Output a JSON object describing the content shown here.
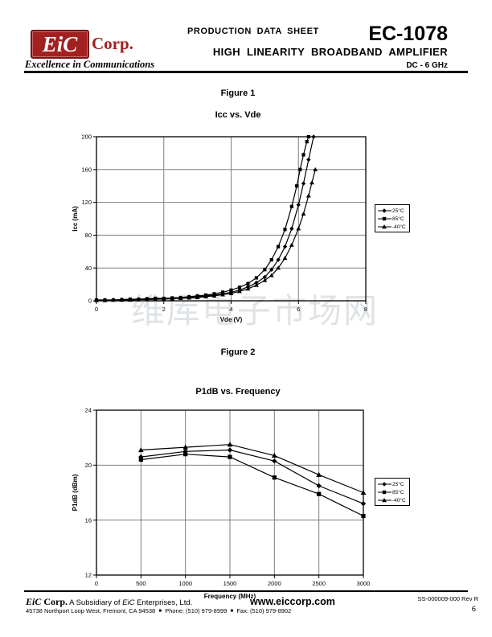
{
  "page": {
    "header": {
      "logo_text": "EiC",
      "logo_corp": "Corp.",
      "tagline": "Excellence in Communications",
      "doc_type": "PRODUCTION DATA SHEET",
      "part_number": "EC-1078",
      "subtitle": "HIGH LINEARITY BROADBAND AMPLIFIER",
      "band": "DC - 6 GHz",
      "brand_red": "#a32020"
    },
    "watermark": "维库电子市场网",
    "footer": {
      "brand_eic": "EiC",
      "brand_corp": " Corp.",
      "subsidiary_pre": " A Subsidiary of ",
      "subsidiary_eic": "EiC",
      "subsidiary_post": " Enterprises, Ltd.",
      "website": "www.eiccorp.com",
      "doc_ref": "SS-000009-000 Rev R",
      "address": "45738 Northport Loop West, Fremont, CA 94538",
      "phone": "Phone: (510) 979-8999",
      "fax": "Fax: (510) 979-8902",
      "bullet": "■",
      "page_number": "6"
    }
  },
  "chart_data": [
    {
      "id": "figure1",
      "figure_label": "Figure 1",
      "title": "Icc vs. Vde",
      "type": "line",
      "xlabel": "Vde (V)",
      "ylabel": "Icc (mA)",
      "xlim": [
        0,
        8
      ],
      "ylim": [
        0,
        200
      ],
      "xticks": [
        0,
        2,
        4,
        6,
        8
      ],
      "yticks": [
        0,
        40,
        80,
        120,
        160,
        200
      ],
      "grid": true,
      "legend_position": "right",
      "series": [
        {
          "name": "25°C",
          "marker": "diamond",
          "color": "#000000",
          "points": [
            [
              0,
              1
            ],
            [
              0.25,
              1
            ],
            [
              0.5,
              1
            ],
            [
              0.75,
              1
            ],
            [
              1,
              1.5
            ],
            [
              1.25,
              1.5
            ],
            [
              1.5,
              2
            ],
            [
              1.75,
              2
            ],
            [
              2,
              2.5
            ],
            [
              2.25,
              3
            ],
            [
              2.5,
              3.5
            ],
            [
              2.75,
              4
            ],
            [
              3,
              5
            ],
            [
              3.25,
              6
            ],
            [
              3.5,
              7
            ],
            [
              3.75,
              8.5
            ],
            [
              4,
              10.5
            ],
            [
              4.25,
              13
            ],
            [
              4.5,
              17
            ],
            [
              4.75,
              22
            ],
            [
              5,
              29
            ],
            [
              5.2,
              38
            ],
            [
              5.4,
              50
            ],
            [
              5.6,
              66
            ],
            [
              5.8,
              88
            ],
            [
              6,
              117
            ],
            [
              6.15,
              143
            ],
            [
              6.3,
              172
            ],
            [
              6.45,
              200
            ]
          ]
        },
        {
          "name": "85°C",
          "marker": "square",
          "color": "#000000",
          "points": [
            [
              0,
              1
            ],
            [
              0.25,
              1
            ],
            [
              0.5,
              1
            ],
            [
              0.75,
              1.5
            ],
            [
              1,
              2
            ],
            [
              1.25,
              2
            ],
            [
              1.5,
              2.5
            ],
            [
              1.75,
              3
            ],
            [
              2,
              3
            ],
            [
              2.25,
              3.5
            ],
            [
              2.5,
              4
            ],
            [
              2.75,
              5
            ],
            [
              3,
              6
            ],
            [
              3.25,
              7
            ],
            [
              3.5,
              8.5
            ],
            [
              3.75,
              10.5
            ],
            [
              4,
              13
            ],
            [
              4.25,
              16.5
            ],
            [
              4.5,
              21
            ],
            [
              4.75,
              28
            ],
            [
              5,
              38
            ],
            [
              5.2,
              50
            ],
            [
              5.4,
              66
            ],
            [
              5.6,
              87
            ],
            [
              5.8,
              115
            ],
            [
              5.95,
              140
            ],
            [
              6.05,
              160
            ],
            [
              6.15,
              178
            ],
            [
              6.25,
              194
            ],
            [
              6.3,
              200
            ]
          ]
        },
        {
          "name": "-40°C",
          "marker": "triangle",
          "color": "#000000",
          "points": [
            [
              0,
              0.5
            ],
            [
              0.25,
              0.5
            ],
            [
              0.5,
              1
            ],
            [
              0.75,
              1
            ],
            [
              1,
              1
            ],
            [
              1.25,
              1.5
            ],
            [
              1.5,
              1.5
            ],
            [
              1.75,
              2
            ],
            [
              2,
              2
            ],
            [
              2.25,
              2.5
            ],
            [
              2.5,
              3
            ],
            [
              2.75,
              3.5
            ],
            [
              3,
              4
            ],
            [
              3.25,
              5
            ],
            [
              3.5,
              6
            ],
            [
              3.75,
              7.5
            ],
            [
              4,
              9
            ],
            [
              4.25,
              11.5
            ],
            [
              4.5,
              14.5
            ],
            [
              4.75,
              19
            ],
            [
              5,
              25
            ],
            [
              5.2,
              31
            ],
            [
              5.4,
              40
            ],
            [
              5.6,
              52
            ],
            [
              5.8,
              68
            ],
            [
              6,
              88
            ],
            [
              6.15,
              106
            ],
            [
              6.3,
              128
            ],
            [
              6.4,
              144
            ],
            [
              6.5,
              160
            ]
          ]
        }
      ]
    },
    {
      "id": "figure2",
      "figure_label": "Figure 2",
      "title": "P1dB vs. Frequency",
      "type": "line",
      "xlabel": "Frequency (MHz)",
      "ylabel": "P1dB (dBm)",
      "xlim": [
        0,
        3000
      ],
      "ylim": [
        12,
        24
      ],
      "xticks": [
        0,
        500,
        1000,
        1500,
        2000,
        2500,
        3000
      ],
      "yticks": [
        12,
        16,
        20,
        24
      ],
      "grid": true,
      "legend_position": "right",
      "series": [
        {
          "name": "25°C",
          "marker": "diamond",
          "color": "#000000",
          "points": [
            [
              500,
              20.6
            ],
            [
              1000,
              21.0
            ],
            [
              1500,
              21.1
            ],
            [
              2000,
              20.3
            ],
            [
              2500,
              18.5
            ],
            [
              3000,
              17.2
            ]
          ]
        },
        {
          "name": "85°C",
          "marker": "square",
          "color": "#000000",
          "points": [
            [
              500,
              20.4
            ],
            [
              1000,
              20.8
            ],
            [
              1500,
              20.6
            ],
            [
              2000,
              19.1
            ],
            [
              2500,
              17.9
            ],
            [
              3000,
              16.3
            ]
          ]
        },
        {
          "name": "-40°C",
          "marker": "triangle",
          "color": "#000000",
          "points": [
            [
              500,
              21.1
            ],
            [
              1000,
              21.3
            ],
            [
              1500,
              21.5
            ],
            [
              2000,
              20.7
            ],
            [
              2500,
              19.3
            ],
            [
              3000,
              18.0
            ]
          ]
        }
      ]
    }
  ]
}
